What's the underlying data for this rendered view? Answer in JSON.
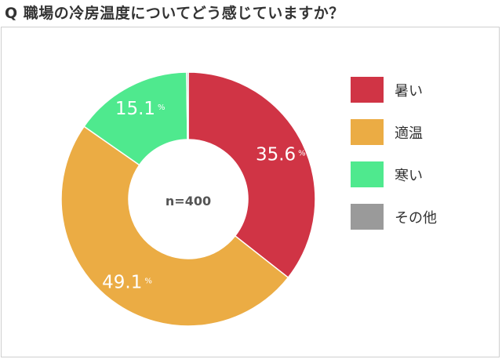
{
  "title": "Q 職場の冷房温度についてどう感じていますか？",
  "center_label": "n=400",
  "percent_unit": "%",
  "chart_data": {
    "type": "pie",
    "title": "Q 職場の冷房温度についてどう感じていますか？",
    "categories": [
      "暑い",
      "適温",
      "寒い",
      "その他"
    ],
    "values": [
      35.6,
      49.1,
      15.1,
      0.2
    ],
    "labels": [
      "35.6",
      "49.1",
      "15.1",
      ""
    ],
    "colors": [
      "#d03445",
      "#ebac44",
      "#4fe98e",
      "#9a9a9a"
    ],
    "donut": true,
    "n": 400,
    "legend_position": "right"
  }
}
